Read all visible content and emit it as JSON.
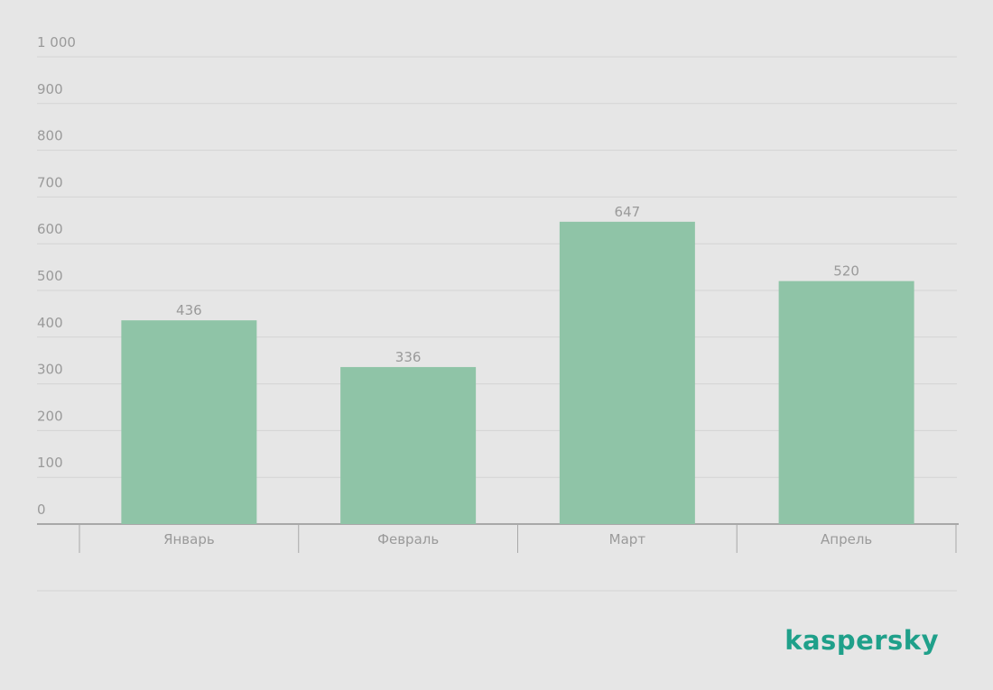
{
  "chart_data": {
    "type": "bar",
    "categories": [
      "Январь",
      "Февраль",
      "Март",
      "Апрель"
    ],
    "values": [
      436,
      336,
      647,
      520
    ],
    "color": "#8fc4a7",
    "ylim": [
      0,
      1000
    ],
    "yticks": [
      0,
      100,
      200,
      300,
      400,
      500,
      600,
      700,
      800,
      900,
      {
        "value": 1000,
        "label": "1 000"
      }
    ],
    "grid": true,
    "value_labels_shown": true
  },
  "brand": "kaspersky"
}
